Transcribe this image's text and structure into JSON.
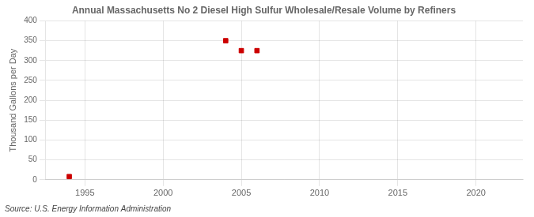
{
  "chart_data": {
    "type": "scatter",
    "title": "Annual Massachusetts No 2 Diesel High Sulfur Wholesale/Resale Volume by Refiners",
    "y_label": "Thousand Gallons per Day",
    "source": "Source: U.S. Energy Information Administration",
    "x": [
      1994,
      2004,
      2005,
      2006
    ],
    "values": [
      8,
      350,
      325,
      325
    ],
    "color": "#cc0000",
    "marker": "square",
    "xlim": [
      1992.5,
      2023
    ],
    "xticks": [
      1995,
      2000,
      2005,
      2010,
      2015,
      2020
    ],
    "ylim": [
      0,
      400
    ],
    "yticks": [
      0,
      50,
      100,
      150,
      200,
      250,
      300,
      350,
      400
    ],
    "grid": true
  }
}
